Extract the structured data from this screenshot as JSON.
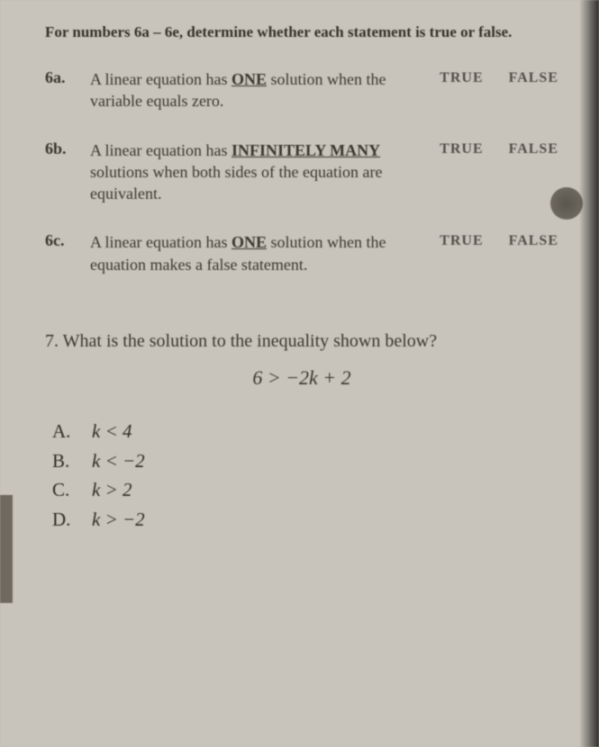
{
  "colors": {
    "page_bg": "#c8c4bb",
    "body_bg": "#b8b4ad",
    "text_primary": "#3b372e",
    "text_muted": "#52504a",
    "hole": "#5a564e"
  },
  "typography": {
    "body_fontsize": 18,
    "heading_fontsize": 17,
    "q7_fontsize": 20,
    "ineq_fontsize": 22,
    "choice_fontsize": 21
  },
  "instructions": "For numbers 6a – 6e, determine whether each statement is true or false.",
  "tf_labels": {
    "true": "TRUE",
    "false": "FALSE"
  },
  "questions": [
    {
      "num": "6a.",
      "lines": [
        "A linear equation has",
        "ONE",
        " solution when the variable equals zero."
      ],
      "underline_idx": 1
    },
    {
      "num": "6b.",
      "lines": [
        "A linear equation has",
        "INFINITELY MANY",
        " solutions when both sides of the equation are equivalent."
      ],
      "underline_idx": 1
    },
    {
      "num": "6c.",
      "lines": [
        "A linear equation has",
        "ONE",
        " solution when the equation makes a false statement."
      ],
      "underline_idx": 1
    }
  ],
  "q7": {
    "num": "7.",
    "prompt": "What is the solution to the inequality shown below?",
    "inequality": "6 > −2k + 2",
    "choices": [
      {
        "letter": "A.",
        "text": "k < 4"
      },
      {
        "letter": "B.",
        "text": "k < −2"
      },
      {
        "letter": "C.",
        "text": "k > 2"
      },
      {
        "letter": "D.",
        "text": "k > −2"
      }
    ]
  }
}
